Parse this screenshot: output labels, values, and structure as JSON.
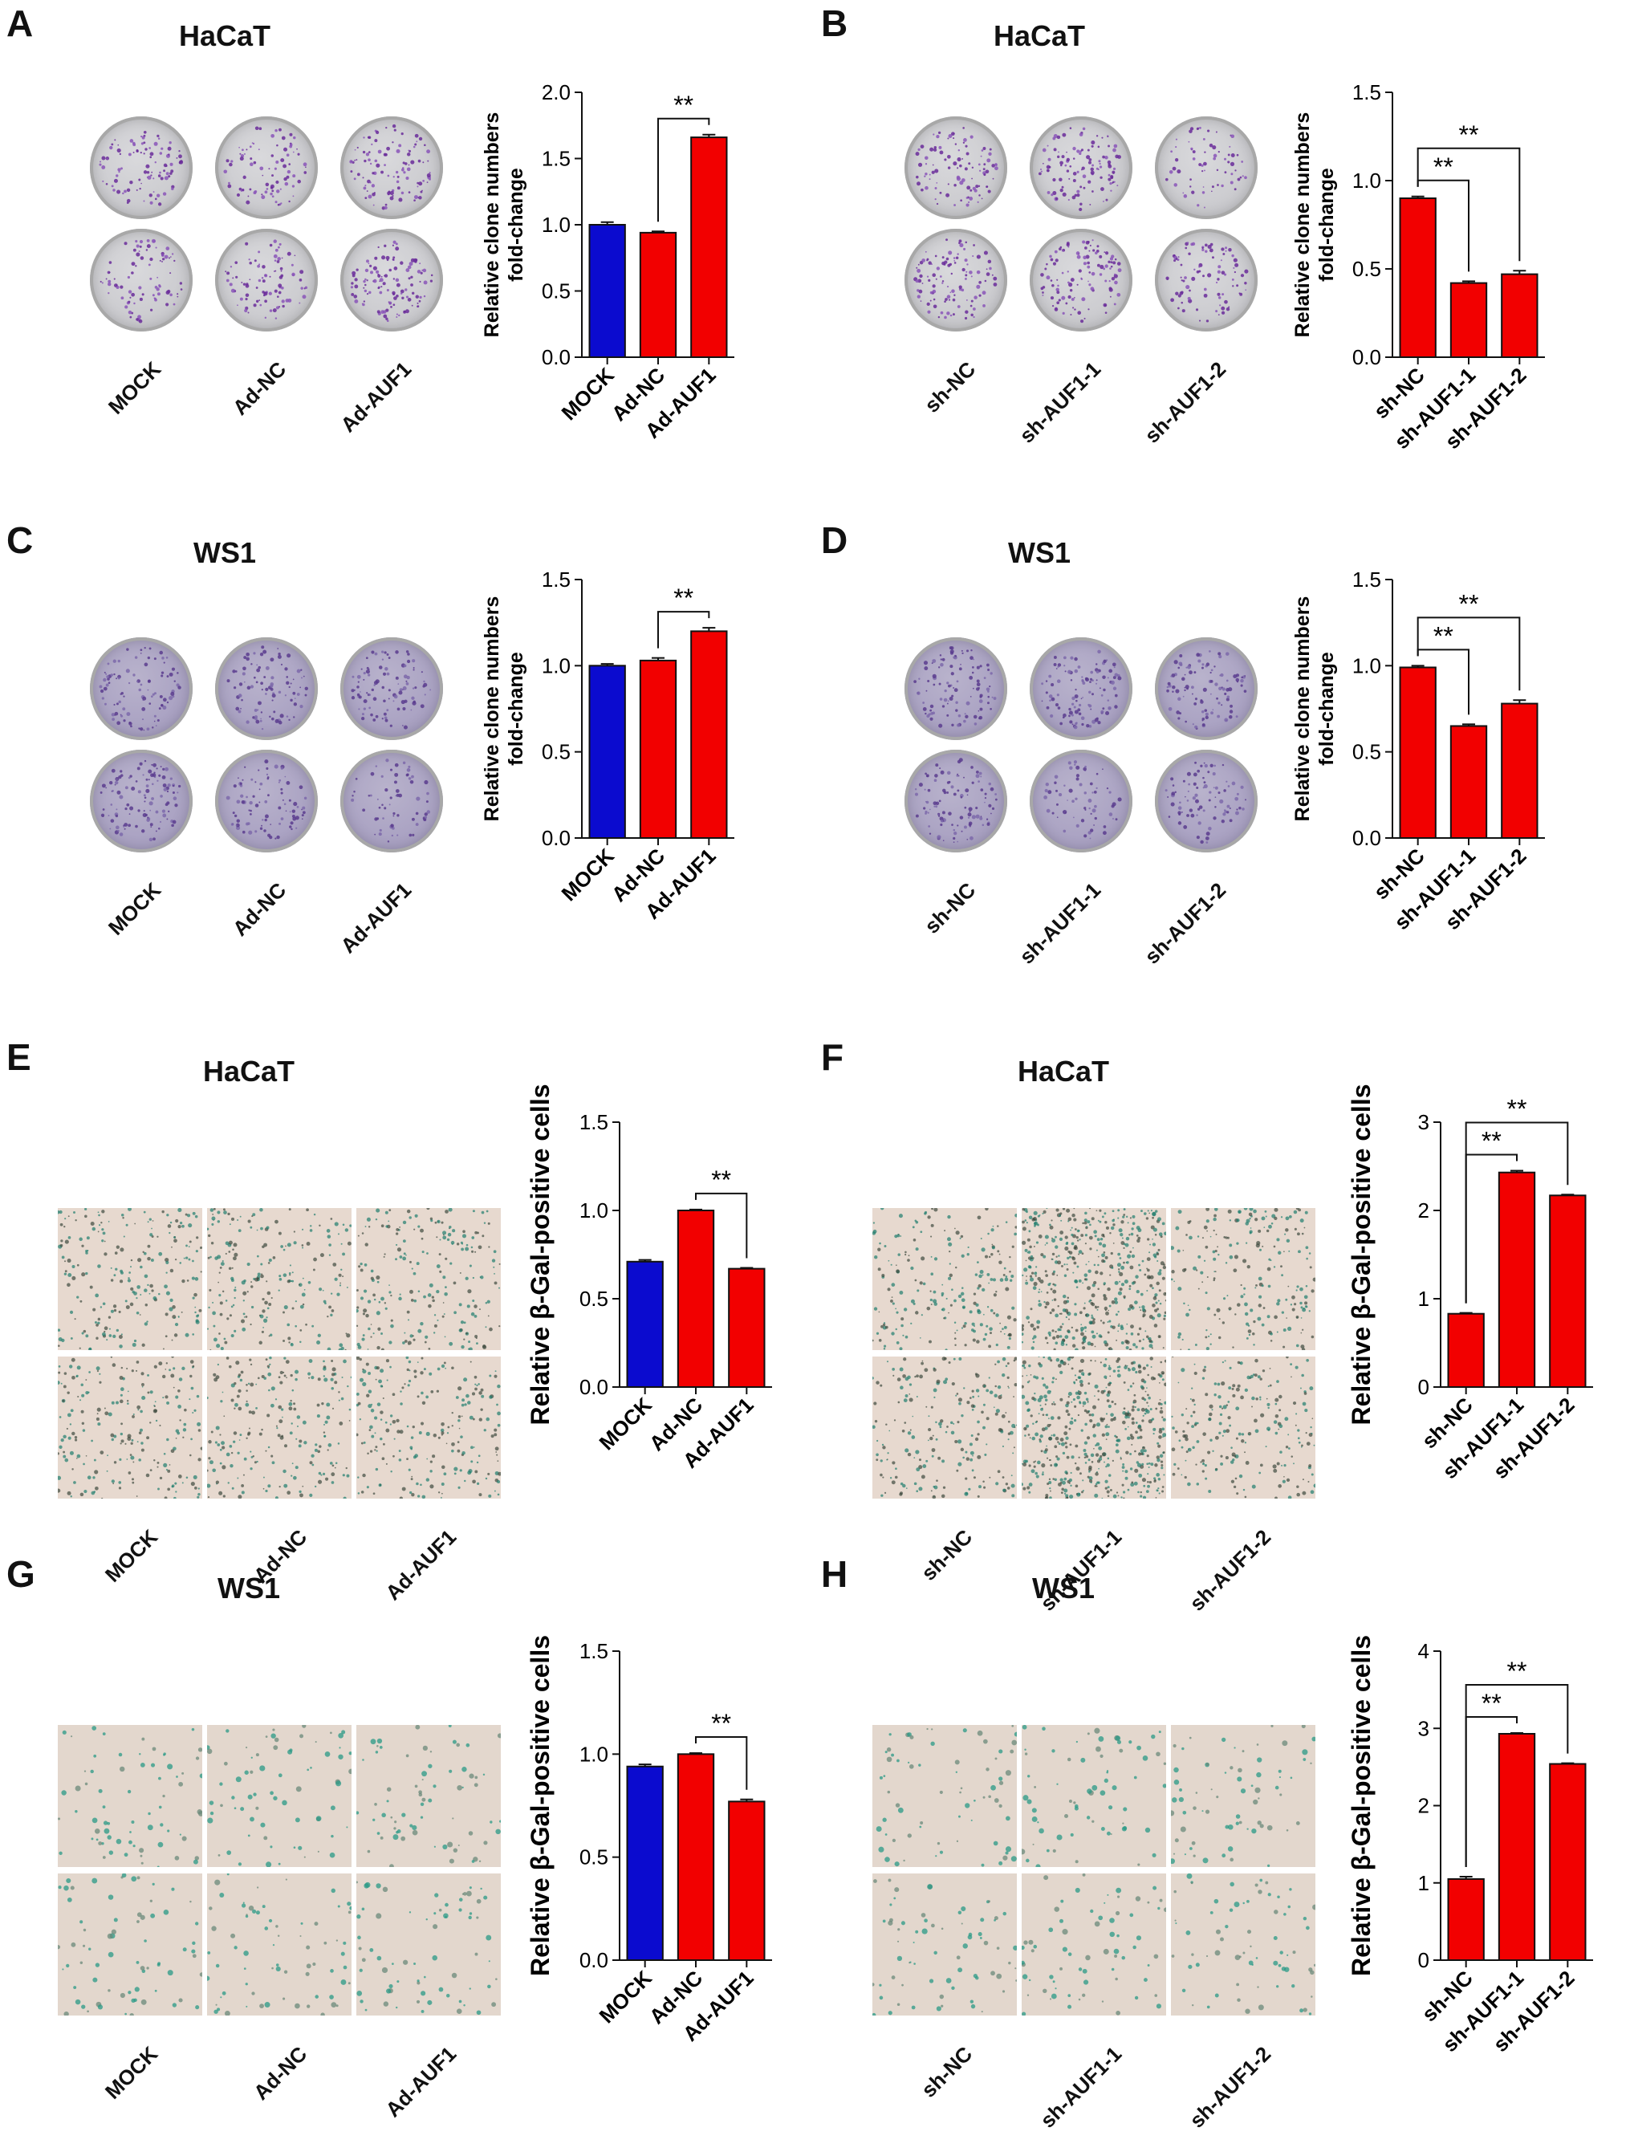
{
  "figure": {
    "panels": [
      {
        "letter": "A",
        "cell_line": "HaCaT",
        "image_type": "plates",
        "image_tone": "crystal-violet",
        "groups": [
          "MOCK",
          "Ad-NC",
          "Ad-AUF1"
        ]
      },
      {
        "letter": "B",
        "cell_line": "HaCaT",
        "image_type": "plates",
        "image_tone": "crystal-violet",
        "groups": [
          "sh-NC",
          "sh-AUF1-1",
          "sh-AUF1-2"
        ]
      },
      {
        "letter": "C",
        "cell_line": "WS1",
        "image_type": "plates",
        "image_tone": "violet-wash",
        "groups": [
          "MOCK",
          "Ad-NC",
          "Ad-AUF1"
        ]
      },
      {
        "letter": "D",
        "cell_line": "WS1",
        "image_type": "plates",
        "image_tone": "violet-wash",
        "groups": [
          "sh-NC",
          "sh-AUF1-1",
          "sh-AUF1-2"
        ]
      },
      {
        "letter": "E",
        "cell_line": "HaCaT",
        "image_type": "micrographs",
        "image_tone": "sa-bgal-dense",
        "groups": [
          "MOCK",
          "Ad-NC",
          "Ad-AUF1"
        ]
      },
      {
        "letter": "F",
        "cell_line": "HaCaT",
        "image_type": "micrographs",
        "image_tone": "sa-bgal-dense",
        "groups": [
          "sh-NC",
          "sh-AUF1-1",
          "sh-AUF1-2"
        ]
      },
      {
        "letter": "G",
        "cell_line": "WS1",
        "image_type": "micrographs",
        "image_tone": "sa-bgal-sparse",
        "groups": [
          "MOCK",
          "Ad-NC",
          "Ad-AUF1"
        ]
      },
      {
        "letter": "H",
        "cell_line": "WS1",
        "image_type": "micrographs",
        "image_tone": "sa-bgal-sparse",
        "groups": [
          "sh-NC",
          "sh-AUF1-1",
          "sh-AUF1-2"
        ]
      }
    ]
  },
  "colors": {
    "mock": "#0b0bcf",
    "treatment": "#f20000",
    "axis": "#111111"
  },
  "chart_data": [
    {
      "panel": "A",
      "type": "bar",
      "ylabel": "Relative clone numbers fold-change",
      "categories": [
        "MOCK",
        "Ad-NC",
        "Ad-AUF1"
      ],
      "values": [
        1.0,
        0.94,
        1.66
      ],
      "errors": [
        0.02,
        0.01,
        0.02
      ],
      "bar_colors": [
        "#0b0bcf",
        "#f20000",
        "#f20000"
      ],
      "ylim": [
        0,
        2.0
      ],
      "yticks": [
        "0.0",
        "0.5",
        "1.0",
        "1.5",
        "2.0"
      ],
      "significance": [
        {
          "from": 1,
          "to": 2,
          "label": "**"
        }
      ]
    },
    {
      "panel": "B",
      "type": "bar",
      "ylabel": "Relative clone numbers fold-change",
      "categories": [
        "sh-NC",
        "sh-AUF1-1",
        "sh-AUF1-2"
      ],
      "values": [
        0.9,
        0.42,
        0.47
      ],
      "errors": [
        0.01,
        0.01,
        0.02
      ],
      "bar_colors": [
        "#f20000",
        "#f20000",
        "#f20000"
      ],
      "ylim": [
        0,
        1.5
      ],
      "yticks": [
        "0.0",
        "0.5",
        "1.0",
        "1.5"
      ],
      "significance": [
        {
          "from": 0,
          "to": 1,
          "label": "**"
        },
        {
          "from": 0,
          "to": 2,
          "label": "**"
        }
      ]
    },
    {
      "panel": "C",
      "type": "bar",
      "ylabel": "Relative clone numbers fold-change",
      "categories": [
        "MOCK",
        "Ad-NC",
        "Ad-AUF1"
      ],
      "values": [
        1.0,
        1.03,
        1.2
      ],
      "errors": [
        0.01,
        0.015,
        0.02
      ],
      "bar_colors": [
        "#0b0bcf",
        "#f20000",
        "#f20000"
      ],
      "ylim": [
        0,
        1.5
      ],
      "yticks": [
        "0.0",
        "0.5",
        "1.0",
        "1.5"
      ],
      "significance": [
        {
          "from": 1,
          "to": 2,
          "label": "**"
        }
      ]
    },
    {
      "panel": "D",
      "type": "bar",
      "ylabel": "Relative clone numbers fold-change",
      "categories": [
        "sh-NC",
        "sh-AUF1-1",
        "sh-AUF1-2"
      ],
      "values": [
        0.99,
        0.65,
        0.78
      ],
      "errors": [
        0.01,
        0.01,
        0.02
      ],
      "bar_colors": [
        "#f20000",
        "#f20000",
        "#f20000"
      ],
      "ylim": [
        0,
        1.5
      ],
      "yticks": [
        "0.0",
        "0.5",
        "1.0",
        "1.5"
      ],
      "significance": [
        {
          "from": 0,
          "to": 1,
          "label": "**"
        },
        {
          "from": 0,
          "to": 2,
          "label": "**"
        }
      ]
    },
    {
      "panel": "E",
      "type": "bar",
      "ylabel": "Relative β-Gal-positive cells",
      "categories": [
        "MOCK",
        "Ad-NC",
        "Ad-AUF1"
      ],
      "values": [
        0.71,
        1.0,
        0.67
      ],
      "errors": [
        0.01,
        0.005,
        0.005
      ],
      "bar_colors": [
        "#0b0bcf",
        "#f20000",
        "#f20000"
      ],
      "ylim": [
        0,
        1.5
      ],
      "yticks": [
        "0.0",
        "0.5",
        "1.0",
        "1.5"
      ],
      "significance": [
        {
          "from": 1,
          "to": 2,
          "label": "**"
        }
      ]
    },
    {
      "panel": "F",
      "type": "bar",
      "ylabel": "Relative β-Gal-positive cells",
      "categories": [
        "sh-NC",
        "sh-AUF1-1",
        "sh-AUF1-2"
      ],
      "values": [
        0.83,
        2.43,
        2.17
      ],
      "errors": [
        0.01,
        0.02,
        0.01
      ],
      "bar_colors": [
        "#f20000",
        "#f20000",
        "#f20000"
      ],
      "ylim": [
        0,
        3
      ],
      "yticks": [
        "0",
        "1",
        "2",
        "3"
      ],
      "significance": [
        {
          "from": 0,
          "to": 1,
          "label": "**"
        },
        {
          "from": 0,
          "to": 2,
          "label": "**"
        }
      ]
    },
    {
      "panel": "G",
      "type": "bar",
      "ylabel": "Relative β-Gal-positive cells",
      "categories": [
        "MOCK",
        "Ad-NC",
        "Ad-AUF1"
      ],
      "values": [
        0.94,
        1.0,
        0.77
      ],
      "errors": [
        0.01,
        0.005,
        0.01
      ],
      "bar_colors": [
        "#0b0bcf",
        "#f20000",
        "#f20000"
      ],
      "ylim": [
        0,
        1.5
      ],
      "yticks": [
        "0.0",
        "0.5",
        "1.0",
        "1.5"
      ],
      "significance": [
        {
          "from": 1,
          "to": 2,
          "label": "**"
        }
      ]
    },
    {
      "panel": "H",
      "type": "bar",
      "ylabel": "Relative β-Gal-positive cells",
      "categories": [
        "sh-NC",
        "sh-AUF1-1",
        "sh-AUF1-2"
      ],
      "values": [
        1.05,
        2.93,
        2.54
      ],
      "errors": [
        0.03,
        0.01,
        0.01
      ],
      "bar_colors": [
        "#f20000",
        "#f20000",
        "#f20000"
      ],
      "ylim": [
        0,
        4
      ],
      "yticks": [
        "0",
        "1",
        "2",
        "3",
        "4"
      ],
      "significance": [
        {
          "from": 0,
          "to": 1,
          "label": "**"
        },
        {
          "from": 0,
          "to": 2,
          "label": "**"
        }
      ]
    }
  ]
}
